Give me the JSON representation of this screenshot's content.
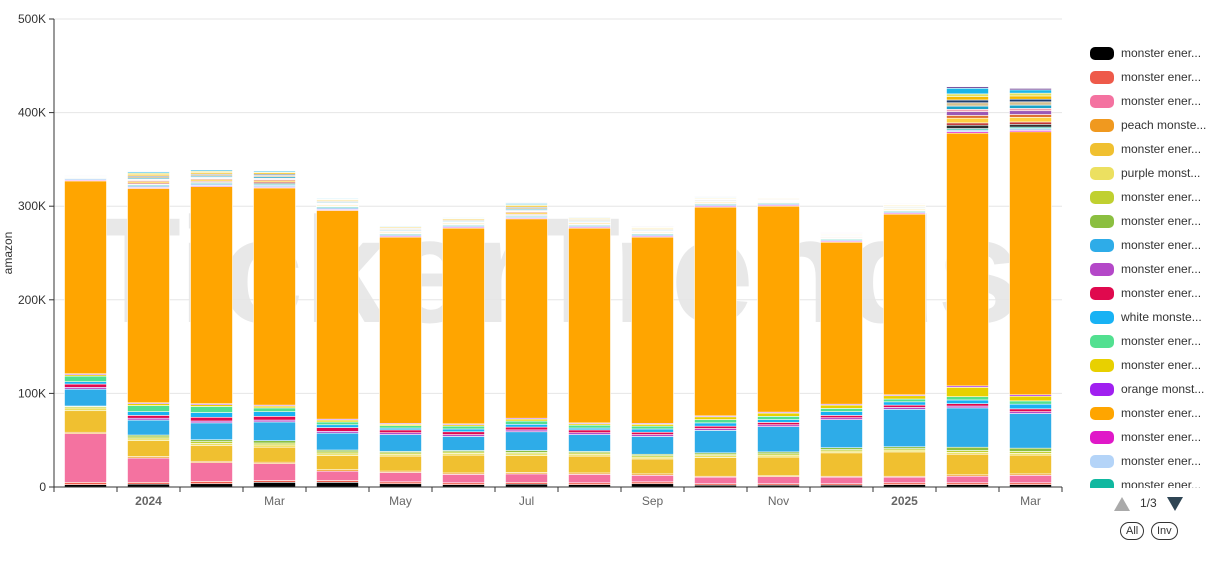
{
  "watermark": "TickerTrends",
  "legend": {
    "page_indicator": "1/3",
    "all_button": "All",
    "inv_button": "Inv"
  },
  "colors": {
    "axis": "#333333",
    "grid": "#e6e6e6",
    "page_up_disabled": "#aaaaaa",
    "page_down": "#2f4554"
  },
  "chart_data": {
    "type": "bar",
    "stacked": true,
    "title": "",
    "xlabel": "",
    "ylabel": "amazon",
    "ylim": [
      0,
      500000
    ],
    "y_ticks": [
      {
        "value": 0,
        "label": "0"
      },
      {
        "value": 100000,
        "label": "100K"
      },
      {
        "value": 200000,
        "label": "200K"
      },
      {
        "value": 300000,
        "label": "300K"
      },
      {
        "value": 400000,
        "label": "400K"
      },
      {
        "value": 500000,
        "label": "500K"
      }
    ],
    "x_ticks": [
      {
        "index": 1,
        "label": "2024",
        "year": true
      },
      {
        "index": 3,
        "label": "Mar",
        "year": false
      },
      {
        "index": 5,
        "label": "May",
        "year": false
      },
      {
        "index": 7,
        "label": "Jul",
        "year": false
      },
      {
        "index": 9,
        "label": "Sep",
        "year": false
      },
      {
        "index": 11,
        "label": "Nov",
        "year": false
      },
      {
        "index": 13,
        "label": "2025",
        "year": true
      },
      {
        "index": 15,
        "label": "Mar",
        "year": false
      }
    ],
    "categories": [
      "2023-12",
      "2024-01",
      "2024-02",
      "2024-03",
      "2024-04",
      "2024-05",
      "2024-06",
      "2024-07",
      "2024-08",
      "2024-09",
      "2024-10",
      "2024-11",
      "2024-12",
      "2025-01",
      "2025-02",
      "2025-03"
    ],
    "series": [
      {
        "name": "monster ener...",
        "color": "#000000",
        "values": [
          2500,
          3000,
          3500,
          5000,
          5000,
          3500,
          2500,
          3000,
          2500,
          3500,
          2000,
          2000,
          2000,
          2500,
          2500,
          2500
        ]
      },
      {
        "name": "monster ener...",
        "color": "#ee5a4a",
        "values": [
          2500,
          2000,
          2500,
          2000,
          2000,
          2000,
          2000,
          2000,
          2000,
          2000,
          1500,
          1500,
          1500,
          2000,
          2000,
          2000
        ]
      },
      {
        "name": "monster ener...",
        "color": "#f472a0",
        "values": [
          52000,
          26000,
          20000,
          18000,
          10000,
          10000,
          9000,
          9000,
          9000,
          7000,
          7000,
          7500,
          7000,
          6000,
          7000,
          8000
        ]
      },
      {
        "name": "peach monste...",
        "color": "#f0991f",
        "values": [
          1500,
          1500,
          1500,
          1500,
          1500,
          1500,
          1500,
          1500,
          1500,
          1500,
          1000,
          1000,
          1000,
          1000,
          1500,
          1500
        ]
      },
      {
        "name": "monster ener...",
        "color": "#f0c030",
        "values": [
          23000,
          17000,
          17000,
          16000,
          15000,
          16000,
          19000,
          18000,
          18000,
          16000,
          20000,
          20000,
          25000,
          26000,
          22000,
          20000
        ]
      },
      {
        "name": "purple monst...",
        "color": "#ece060",
        "values": [
          3000,
          2000,
          2000,
          2500,
          2000,
          2000,
          2000,
          2000,
          2000,
          2000,
          2000,
          2000,
          2000,
          2000,
          2000,
          2000
        ]
      },
      {
        "name": "monster ener...",
        "color": "#c0d030",
        "values": [
          1500,
          2000,
          2000,
          2000,
          2000,
          1500,
          1500,
          1500,
          1500,
          1500,
          1500,
          1500,
          1500,
          1500,
          2000,
          2000
        ]
      },
      {
        "name": "monster ener...",
        "color": "#8bbf40",
        "values": [
          500,
          2000,
          2000,
          2500,
          2000,
          1500,
          1500,
          2000,
          1500,
          1500,
          1500,
          2000,
          2000,
          2000,
          3500,
          3500
        ]
      },
      {
        "name": "monster ener...",
        "color": "#2eace8",
        "values": [
          18000,
          16000,
          18000,
          20000,
          18000,
          18000,
          15000,
          20000,
          18000,
          19000,
          24000,
          27000,
          30000,
          40000,
          42000,
          37000
        ]
      },
      {
        "name": "monster ener...",
        "color": "#b448c8",
        "values": [
          2000,
          2000,
          2000,
          2000,
          2000,
          2000,
          2000,
          2000,
          2000,
          2000,
          2000,
          2000,
          2000,
          2000,
          2000,
          2000
        ]
      },
      {
        "name": "monster ener...",
        "color": "#e0094e",
        "values": [
          3500,
          3000,
          4000,
          4000,
          4000,
          3000,
          3000,
          3000,
          3000,
          2500,
          2500,
          2500,
          2500,
          2500,
          2500,
          3000
        ]
      },
      {
        "name": "white monste...",
        "color": "#18b2f4",
        "values": [
          2500,
          4000,
          5000,
          5000,
          3000,
          2000,
          3000,
          3000,
          2000,
          3500,
          3500,
          3000,
          4000,
          3500,
          4000,
          5000
        ]
      },
      {
        "name": "monster ener...",
        "color": "#52e090",
        "values": [
          6000,
          6500,
          6500,
          4000,
          3000,
          2500,
          3000,
          3500,
          3000,
          3000,
          3500,
          3500,
          3500,
          3000,
          3500,
          3500
        ]
      },
      {
        "name": "monster ener...",
        "color": "#e8d000",
        "values": [
          1500,
          2000,
          2000,
          2000,
          2000,
          1500,
          1500,
          2000,
          1500,
          2000,
          3000,
          3500,
          3500,
          3500,
          10000,
          5000
        ]
      },
      {
        "name": "orange monst...",
        "color": "#a020f0",
        "values": [
          1000,
          1000,
          1000,
          1000,
          1000,
          1000,
          1000,
          1000,
          1000,
          1000,
          1000,
          1000,
          1000,
          1000,
          1500,
          1500
        ]
      },
      {
        "name": "monster ener...",
        "color": "#ffa500",
        "values": [
          206000,
          229000,
          232000,
          232000,
          223000,
          199000,
          209000,
          213000,
          208000,
          199000,
          223000,
          220000,
          173000,
          193000,
          270000,
          281000
        ]
      },
      {
        "name": "monster ener...",
        "color": "#e018c8",
        "values": [
          1000,
          1000,
          1000,
          1000,
          1000,
          1000,
          1000,
          1000,
          1000,
          1000,
          1000,
          1000,
          1000,
          1000,
          1500,
          1500
        ]
      },
      {
        "name": "monster ener...",
        "color": "#b4d4f8",
        "values": [
          1500,
          2000,
          2000,
          2000,
          2000,
          1500,
          1500,
          1500,
          1500,
          1500,
          1500,
          1500,
          1500,
          1500,
          2000,
          2000
        ]
      },
      {
        "name": "monster ener...",
        "color": "#10b8a0",
        "values": [
          500,
          1000,
          1000,
          1000,
          1000,
          1000,
          1000,
          1000,
          1000,
          1000,
          1000,
          1000,
          1000,
          1000,
          1500,
          1500
        ]
      }
    ],
    "extra_series_colors": [
      "#2f2f2f",
      "#c23531",
      "#ffd040",
      "#e07030",
      "#9b59b6",
      "#f0a0b0",
      "#1aa3c8",
      "#d4c090",
      "#1f3f6f",
      "#f5b800",
      "#e0e060",
      "#1ab5e8",
      "#5d2d8a"
    ],
    "extra_series_values": [
      [
        300,
        600,
        900,
        1000,
        500,
        300,
        300,
        700,
        300,
        400,
        300,
        300,
        300,
        400,
        3500,
        3000
      ],
      [
        300,
        1200,
        1000,
        1200,
        600,
        600,
        500,
        900,
        500,
        500,
        500,
        400,
        400,
        400,
        2500,
        2500
      ],
      [
        400,
        1400,
        1500,
        1400,
        900,
        900,
        900,
        1500,
        1000,
        800,
        900,
        600,
        800,
        900,
        5000,
        5000
      ],
      [
        300,
        1200,
        1000,
        1200,
        700,
        700,
        600,
        1000,
        700,
        600,
        500,
        400,
        500,
        600,
        3000,
        3000
      ],
      [
        200,
        700,
        700,
        800,
        500,
        400,
        400,
        700,
        400,
        400,
        300,
        300,
        300,
        400,
        4000,
        4000
      ],
      [
        200,
        700,
        700,
        800,
        500,
        400,
        400,
        700,
        400,
        400,
        400,
        300,
        300,
        300,
        2500,
        2500
      ],
      [
        300,
        1200,
        1200,
        1500,
        900,
        900,
        800,
        1200,
        900,
        800,
        700,
        600,
        600,
        700,
        3500,
        3500
      ],
      [
        300,
        1500,
        1500,
        1500,
        1000,
        1000,
        1000,
        1500,
        1000,
        900,
        800,
        800,
        700,
        800,
        3500,
        3500
      ],
      [
        200,
        1000,
        1000,
        1200,
        700,
        700,
        700,
        1000,
        700,
        600,
        600,
        500,
        500,
        600,
        3000,
        2800
      ],
      [
        300,
        1600,
        1600,
        1500,
        1000,
        1000,
        1000,
        1500,
        1000,
        900,
        800,
        700,
        700,
        800,
        3500,
        3500
      ],
      [
        200,
        1200,
        1200,
        1000,
        700,
        700,
        700,
        1100,
        700,
        700,
        600,
        500,
        500,
        600,
        3000,
        3000
      ],
      [
        200,
        1300,
        1300,
        1200,
        800,
        800,
        700,
        1200,
        800,
        700,
        700,
        600,
        600,
        600,
        6000,
        3500
      ],
      [
        100,
        600,
        500,
        600,
        400,
        400,
        300,
        500,
        300,
        300,
        300,
        200,
        200,
        300,
        1500,
        1500
      ]
    ]
  }
}
